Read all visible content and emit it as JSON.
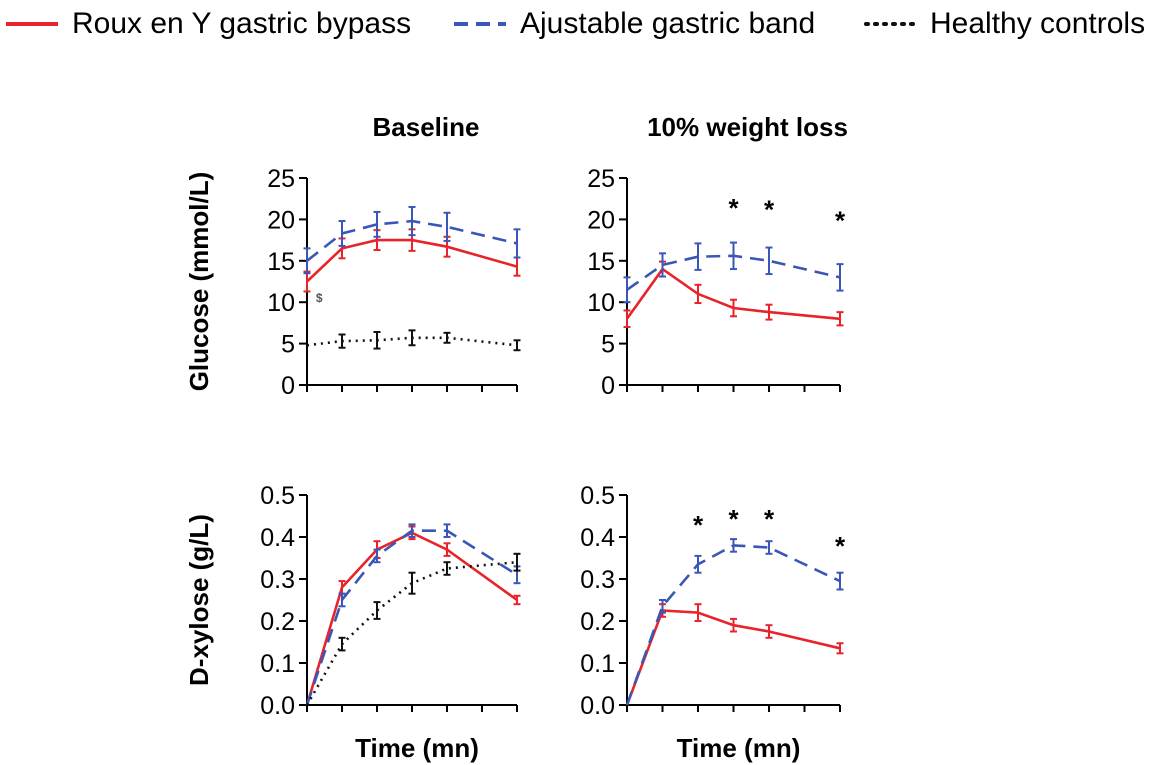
{
  "legend": {
    "items": [
      {
        "label": "Roux en Y gastric bypass",
        "series": "rygb"
      },
      {
        "label": "Ajustable gastric band",
        "series": "agb"
      },
      {
        "label": "Healthy controls",
        "series": "hc"
      }
    ]
  },
  "styles": {
    "rygb": {
      "color": "#e8232a",
      "dash": ""
    },
    "agb": {
      "color": "#3a57b8",
      "dash": "14,8"
    },
    "hc": {
      "color": "#111111",
      "dash": "2,5"
    }
  },
  "chart_data": [
    {
      "type": "line",
      "title": "Baseline",
      "ylabel": "Glucose (mmol/L)",
      "xlabel": "",
      "ylim": [
        0,
        25
      ],
      "yticks": [
        "0",
        "5",
        "10",
        "15",
        "20",
        "25"
      ],
      "x": [
        0,
        1,
        2,
        3,
        4,
        6
      ],
      "series": [
        {
          "name": "Roux en Y gastric bypass",
          "key": "rygb",
          "values": [
            12.5,
            16.5,
            17.5,
            17.5,
            16.7,
            14.3
          ],
          "err": [
            1.2,
            1.2,
            1.2,
            1.3,
            1.2,
            1.1
          ]
        },
        {
          "name": "Ajustable gastric band",
          "key": "agb",
          "values": [
            15.0,
            18.3,
            19.4,
            19.8,
            19.1,
            17.1
          ],
          "err": [
            1.5,
            1.5,
            1.5,
            1.7,
            1.7,
            1.7
          ]
        },
        {
          "name": "Healthy controls",
          "key": "hc",
          "values": [
            4.8,
            5.3,
            5.4,
            5.7,
            5.7,
            4.8
          ],
          "err": [
            0.0,
            0.8,
            1.0,
            0.9,
            0.6,
            0.6
          ]
        }
      ],
      "annotations": [
        {
          "text": "$",
          "x": 0.35,
          "y": 10.5
        }
      ]
    },
    {
      "type": "line",
      "title": "10% weight loss",
      "ylabel": "",
      "xlabel": "",
      "ylim": [
        0,
        25
      ],
      "yticks": [
        "0",
        "5",
        "10",
        "15",
        "20",
        "25"
      ],
      "x": [
        0,
        1,
        2,
        3,
        4,
        6
      ],
      "series": [
        {
          "name": "Roux en Y gastric bypass",
          "key": "rygb",
          "values": [
            8.0,
            14.0,
            11.0,
            9.3,
            8.8,
            8.0
          ],
          "err": [
            1.0,
            0.9,
            1.1,
            1.0,
            0.9,
            0.8
          ]
        },
        {
          "name": "Ajustable gastric band",
          "key": "agb",
          "values": [
            11.5,
            14.5,
            15.5,
            15.6,
            15.0,
            13.0
          ],
          "err": [
            1.5,
            1.4,
            1.6,
            1.6,
            1.6,
            1.6
          ]
        }
      ],
      "annotations": [
        {
          "text": "*",
          "x": 3,
          "y": 22.0
        },
        {
          "text": "*",
          "x": 4,
          "y": 21.8
        },
        {
          "text": "*",
          "x": 6,
          "y": 20.5
        }
      ]
    },
    {
      "type": "line",
      "title": "",
      "ylabel": "D-xylose (g/L)",
      "xlabel": "Time (mn)",
      "ylim": [
        0,
        0.5
      ],
      "yticks": [
        "0.0",
        "0.1",
        "0.2",
        "0.3",
        "0.4",
        "0.5"
      ],
      "x": [
        0,
        1,
        2,
        3,
        4,
        6
      ],
      "series": [
        {
          "name": "Roux en Y gastric bypass",
          "key": "rygb",
          "values": [
            0.0,
            0.28,
            0.37,
            0.41,
            0.37,
            0.25
          ],
          "err": [
            0.0,
            0.015,
            0.02,
            0.015,
            0.015,
            0.01
          ]
        },
        {
          "name": "Ajustable gastric band",
          "key": "agb",
          "values": [
            0.0,
            0.25,
            0.355,
            0.415,
            0.415,
            0.31
          ],
          "err": [
            0.0,
            0.015,
            0.015,
            0.015,
            0.015,
            0.02
          ]
        },
        {
          "name": "Healthy controls",
          "key": "hc",
          "values": [
            0.0,
            0.145,
            0.225,
            0.29,
            0.325,
            0.34
          ],
          "err": [
            0.0,
            0.015,
            0.02,
            0.025,
            0.015,
            0.02
          ]
        }
      ],
      "annotations": []
    },
    {
      "type": "line",
      "title": "",
      "ylabel": "",
      "xlabel": "Time (mn)",
      "ylim": [
        0,
        0.5
      ],
      "yticks": [
        "0.0",
        "0.1",
        "0.2",
        "0.3",
        "0.4",
        "0.5"
      ],
      "x": [
        0,
        1,
        2,
        3,
        4,
        6
      ],
      "series": [
        {
          "name": "Roux en Y gastric bypass",
          "key": "rygb",
          "values": [
            0.0,
            0.225,
            0.22,
            0.19,
            0.175,
            0.135
          ],
          "err": [
            0.0,
            0.015,
            0.02,
            0.015,
            0.015,
            0.012
          ]
        },
        {
          "name": "Ajustable gastric band",
          "key": "agb",
          "values": [
            0.0,
            0.235,
            0.335,
            0.38,
            0.375,
            0.295
          ],
          "err": [
            0.0,
            0.015,
            0.02,
            0.015,
            0.015,
            0.02
          ]
        }
      ],
      "annotations": [
        {
          "text": "*",
          "x": 2,
          "y": 0.44
        },
        {
          "text": "*",
          "x": 3,
          "y": 0.455
        },
        {
          "text": "*",
          "x": 4,
          "y": 0.455
        },
        {
          "text": "*",
          "x": 6,
          "y": 0.39
        }
      ]
    }
  ]
}
